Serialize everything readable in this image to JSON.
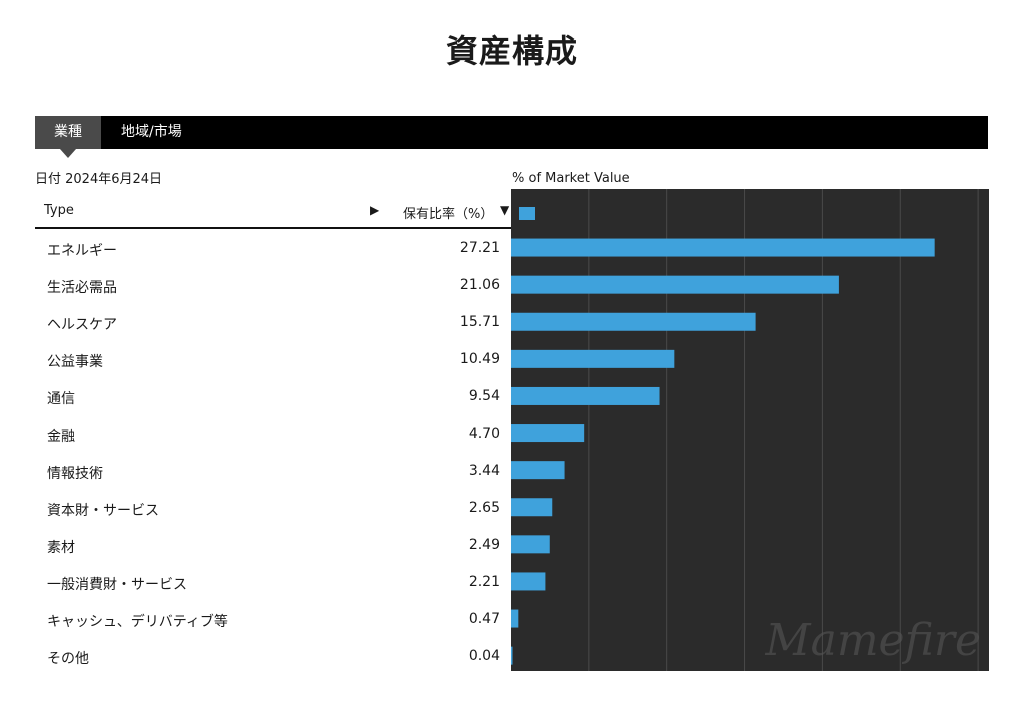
{
  "title": "資産構成",
  "tabs": [
    {
      "label": "業種",
      "active": true
    },
    {
      "label": "地域/市場",
      "active": false
    }
  ],
  "date_label": "日付 2024年6月24日",
  "table": {
    "col_type": "Type",
    "col_type_arrow": "▶",
    "col_pct": "保有比率（%）",
    "col_pct_arrow": "▼"
  },
  "colors": {
    "bar": "#3fa2dc",
    "plot_bg": "#2b2b2b",
    "grid": "#4a4a4a",
    "tab_bg": "#000000",
    "tab_active": "#4a4a4a"
  },
  "watermark": "Mamefire",
  "chart_data": {
    "type": "bar",
    "orientation": "horizontal",
    "title": "% of Market Value",
    "header_bar_value": 0.47,
    "categories": [
      "エネルギー",
      "生活必需品",
      "ヘルスケア",
      "公益事業",
      "通信",
      "金融",
      "情報技術",
      "資本財・サービス",
      "素材",
      "一般消費財・サービス",
      "キャッシュ、デリバティブ等",
      "その他"
    ],
    "value_labels": [
      "27.21",
      "21.06",
      "15.71",
      "10.49",
      "9.54",
      "4.70",
      "3.44",
      "2.65",
      "2.49",
      "2.21",
      "0.47",
      "0.04"
    ],
    "values": [
      27.21,
      21.06,
      15.71,
      10.49,
      9.54,
      4.7,
      3.44,
      2.65,
      2.49,
      2.21,
      0.47,
      0.04
    ],
    "xlim": [
      0,
      30.7
    ],
    "gridlines": [
      0,
      5,
      10,
      15,
      20,
      25,
      30
    ],
    "grid": true
  }
}
